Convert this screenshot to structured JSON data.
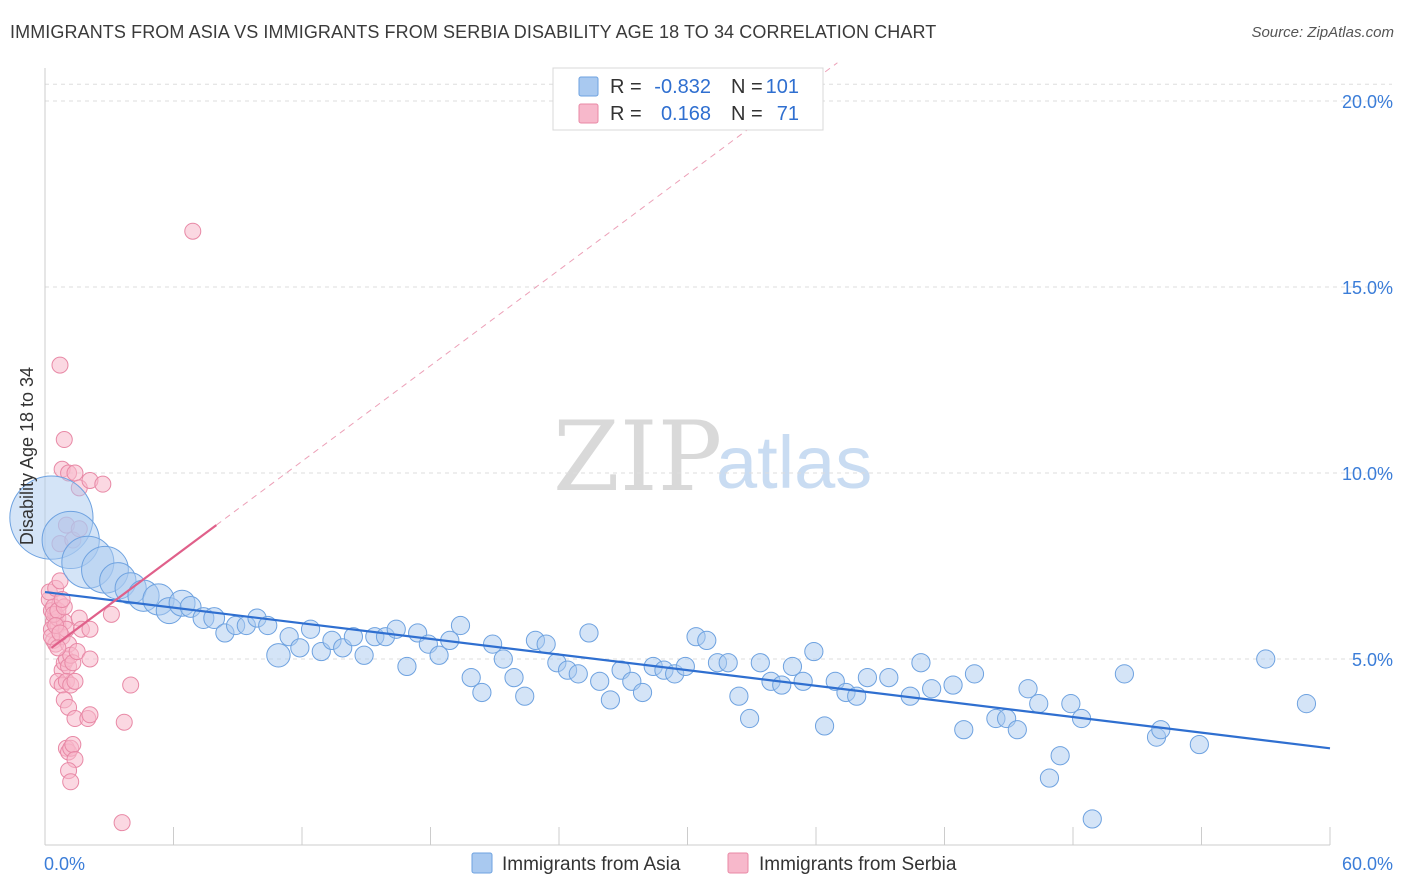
{
  "header": {
    "title": "IMMIGRANTS FROM ASIA VS IMMIGRANTS FROM SERBIA DISABILITY AGE 18 TO 34 CORRELATION CHART",
    "source": "Source: ZipAtlas.com"
  },
  "watermark": {
    "zip": "ZIP",
    "atlas": "atlas"
  },
  "legend_box": {
    "rows": [
      {
        "r_label": "R =",
        "r_value": "-0.832",
        "n_label": "N =",
        "n_value": "101"
      },
      {
        "r_label": "R =",
        "r_value": "0.168",
        "n_label": "N =",
        "n_value": "71"
      }
    ]
  },
  "colors": {
    "asia_fill": "#a9c9f0",
    "asia_stroke": "#6ea2e0",
    "asia_line": "#2f6fd0",
    "serbia_fill": "#f7b8cb",
    "serbia_stroke": "#e889a6",
    "serbia_line": "#e0608a",
    "value_text": "#2f6fd0",
    "grid": "#dddddd"
  },
  "chart_data": {
    "type": "scatter",
    "ylabel": "Disability Age 18 to 34",
    "xlim": [
      0,
      60
    ],
    "ylim": [
      0,
      20
    ],
    "x_tick_labels": [
      "0.0%",
      "60.0%"
    ],
    "y_ticks": [
      5,
      10,
      15,
      20
    ],
    "y_tick_labels": [
      "5.0%",
      "10.0%",
      "15.0%",
      "20.0%"
    ],
    "legend_position": "bottom-center",
    "series": [
      {
        "name": "Immigrants from Asia",
        "r": -0.832,
        "n": 101,
        "trend": {
          "x": [
            0,
            60
          ],
          "y": [
            6.8,
            2.6
          ]
        },
        "points": [
          [
            0.3,
            8.8,
            3.2
          ],
          [
            1.2,
            8.2,
            2.2
          ],
          [
            2.0,
            7.6,
            2.0
          ],
          [
            2.8,
            7.4,
            1.8
          ],
          [
            3.4,
            7.1,
            1.4
          ],
          [
            4.0,
            6.9,
            1.2
          ],
          [
            4.6,
            6.7,
            1.2
          ],
          [
            5.3,
            6.6,
            1.2
          ],
          [
            5.8,
            6.3,
            1.0
          ],
          [
            6.4,
            6.5,
            1.0
          ],
          [
            6.8,
            6.4,
            0.8
          ],
          [
            7.4,
            6.1,
            0.8
          ],
          [
            7.9,
            6.1,
            0.8
          ],
          [
            8.4,
            5.7,
            0.7
          ],
          [
            8.9,
            5.9,
            0.7
          ],
          [
            9.4,
            5.9,
            0.7
          ],
          [
            9.9,
            6.1,
            0.7
          ],
          [
            10.4,
            5.9,
            0.7
          ],
          [
            10.9,
            5.1,
            0.9
          ],
          [
            11.4,
            5.6,
            0.7
          ],
          [
            11.9,
            5.3,
            0.7
          ],
          [
            12.4,
            5.8,
            0.7
          ],
          [
            12.9,
            5.2,
            0.7
          ],
          [
            13.4,
            5.5,
            0.7
          ],
          [
            13.9,
            5.3,
            0.7
          ],
          [
            14.4,
            5.6,
            0.7
          ],
          [
            14.9,
            5.1,
            0.7
          ],
          [
            15.4,
            5.6,
            0.7
          ],
          [
            15.9,
            5.6,
            0.7
          ],
          [
            16.4,
            5.8,
            0.7
          ],
          [
            16.9,
            4.8,
            0.7
          ],
          [
            17.4,
            5.7,
            0.7
          ],
          [
            17.9,
            5.4,
            0.7
          ],
          [
            18.4,
            5.1,
            0.7
          ],
          [
            18.9,
            5.5,
            0.7
          ],
          [
            19.4,
            5.9,
            0.7
          ],
          [
            19.9,
            4.5,
            0.7
          ],
          [
            20.4,
            4.1,
            0.7
          ],
          [
            20.9,
            5.4,
            0.7
          ],
          [
            21.4,
            5.0,
            0.7
          ],
          [
            21.9,
            4.5,
            0.7
          ],
          [
            22.4,
            4.0,
            0.7
          ],
          [
            22.9,
            5.5,
            0.7
          ],
          [
            23.4,
            5.4,
            0.7
          ],
          [
            23.9,
            4.9,
            0.7
          ],
          [
            24.4,
            4.7,
            0.7
          ],
          [
            24.9,
            4.6,
            0.7
          ],
          [
            25.4,
            5.7,
            0.7
          ],
          [
            25.9,
            4.4,
            0.7
          ],
          [
            26.4,
            3.9,
            0.7
          ],
          [
            26.9,
            4.7,
            0.7
          ],
          [
            27.4,
            4.4,
            0.7
          ],
          [
            27.9,
            4.1,
            0.7
          ],
          [
            28.4,
            4.8,
            0.7
          ],
          [
            28.9,
            4.7,
            0.7
          ],
          [
            29.4,
            4.6,
            0.7
          ],
          [
            29.9,
            4.8,
            0.7
          ],
          [
            30.4,
            5.6,
            0.7
          ],
          [
            30.9,
            5.5,
            0.7
          ],
          [
            31.4,
            4.9,
            0.7
          ],
          [
            31.9,
            4.9,
            0.7
          ],
          [
            32.4,
            4.0,
            0.7
          ],
          [
            32.9,
            3.4,
            0.7
          ],
          [
            33.4,
            4.9,
            0.7
          ],
          [
            33.9,
            4.4,
            0.7
          ],
          [
            34.4,
            4.3,
            0.7
          ],
          [
            34.9,
            4.8,
            0.7
          ],
          [
            35.4,
            4.4,
            0.7
          ],
          [
            35.9,
            5.2,
            0.7
          ],
          [
            36.4,
            3.2,
            0.7
          ],
          [
            36.9,
            4.4,
            0.7
          ],
          [
            37.4,
            4.1,
            0.7
          ],
          [
            37.9,
            4.0,
            0.7
          ],
          [
            38.4,
            4.5,
            0.7
          ],
          [
            39.4,
            4.5,
            0.7
          ],
          [
            40.4,
            4.0,
            0.7
          ],
          [
            40.9,
            4.9,
            0.7
          ],
          [
            41.4,
            4.2,
            0.7
          ],
          [
            42.4,
            4.3,
            0.7
          ],
          [
            42.9,
            3.1,
            0.7
          ],
          [
            43.4,
            4.6,
            0.7
          ],
          [
            44.4,
            3.4,
            0.7
          ],
          [
            44.9,
            3.4,
            0.7
          ],
          [
            45.4,
            3.1,
            0.7
          ],
          [
            45.9,
            4.2,
            0.7
          ],
          [
            46.4,
            3.8,
            0.7
          ],
          [
            46.9,
            1.8,
            0.7
          ],
          [
            47.4,
            2.4,
            0.7
          ],
          [
            47.9,
            3.8,
            0.7
          ],
          [
            48.4,
            3.4,
            0.7
          ],
          [
            48.9,
            0.7,
            0.7
          ],
          [
            50.4,
            4.6,
            0.7
          ],
          [
            51.9,
            2.9,
            0.7
          ],
          [
            52.1,
            3.1,
            0.7
          ],
          [
            53.9,
            2.7,
            0.7
          ],
          [
            57.0,
            5.0,
            0.7
          ],
          [
            58.9,
            3.8,
            0.7
          ]
        ]
      },
      {
        "name": "Immigrants from Serbia",
        "r": 0.168,
        "n": 71,
        "trend": {
          "x": [
            0.3,
            8.0
          ],
          "y": [
            5.3,
            8.6
          ]
        },
        "points": [
          [
            0.2,
            6.6
          ],
          [
            0.3,
            6.3
          ],
          [
            0.4,
            6.0
          ],
          [
            0.3,
            5.8
          ],
          [
            0.4,
            5.5
          ],
          [
            0.5,
            6.2
          ],
          [
            0.6,
            5.9
          ],
          [
            0.7,
            6.5
          ],
          [
            0.5,
            5.4
          ],
          [
            0.8,
            5.6
          ],
          [
            0.3,
            5.6
          ],
          [
            0.4,
            6.4
          ],
          [
            0.6,
            6.1
          ],
          [
            0.9,
            6.0
          ],
          [
            1.0,
            5.8
          ],
          [
            1.1,
            5.4
          ],
          [
            0.2,
            6.8
          ],
          [
            0.5,
            6.9
          ],
          [
            0.7,
            7.1
          ],
          [
            0.8,
            4.7
          ],
          [
            0.9,
            4.9
          ],
          [
            1.0,
            5.0
          ],
          [
            1.1,
            4.8
          ],
          [
            1.2,
            5.1
          ],
          [
            1.3,
            4.9
          ],
          [
            0.6,
            4.4
          ],
          [
            0.8,
            4.3
          ],
          [
            1.0,
            4.4
          ],
          [
            1.2,
            4.3
          ],
          [
            1.4,
            4.4
          ],
          [
            0.9,
            3.9
          ],
          [
            1.1,
            3.7
          ],
          [
            1.4,
            3.4
          ],
          [
            2.0,
            3.4
          ],
          [
            2.1,
            3.5
          ],
          [
            1.0,
            2.6
          ],
          [
            1.1,
            2.5
          ],
          [
            1.2,
            2.6
          ],
          [
            1.3,
            2.7
          ],
          [
            1.4,
            2.3
          ],
          [
            1.1,
            2.0
          ],
          [
            1.2,
            1.7
          ],
          [
            1.6,
            6.1
          ],
          [
            1.7,
            5.8
          ],
          [
            1.5,
            5.2
          ],
          [
            2.1,
            5.0
          ],
          [
            2.1,
            5.8
          ],
          [
            0.7,
            8.1
          ],
          [
            1.0,
            8.6
          ],
          [
            1.3,
            8.2
          ],
          [
            1.6,
            8.5
          ],
          [
            0.7,
            12.9
          ],
          [
            0.9,
            10.9
          ],
          [
            0.8,
            10.1
          ],
          [
            1.1,
            10.0
          ],
          [
            1.4,
            10.0
          ],
          [
            1.6,
            9.6
          ],
          [
            2.1,
            9.8
          ],
          [
            2.7,
            9.7
          ],
          [
            3.1,
            6.2
          ],
          [
            3.7,
            3.3
          ],
          [
            4.0,
            4.3
          ],
          [
            3.6,
            0.6
          ],
          [
            6.9,
            16.5
          ],
          [
            0.4,
            6.2
          ],
          [
            0.6,
            6.3
          ],
          [
            0.9,
            6.4
          ],
          [
            0.5,
            5.9
          ],
          [
            0.7,
            5.7
          ],
          [
            0.6,
            5.3
          ],
          [
            0.8,
            6.6
          ]
        ]
      }
    ]
  },
  "bottom_legend": {
    "items": [
      {
        "label": "Immigrants from Asia"
      },
      {
        "label": "Immigrants from Serbia"
      }
    ]
  }
}
